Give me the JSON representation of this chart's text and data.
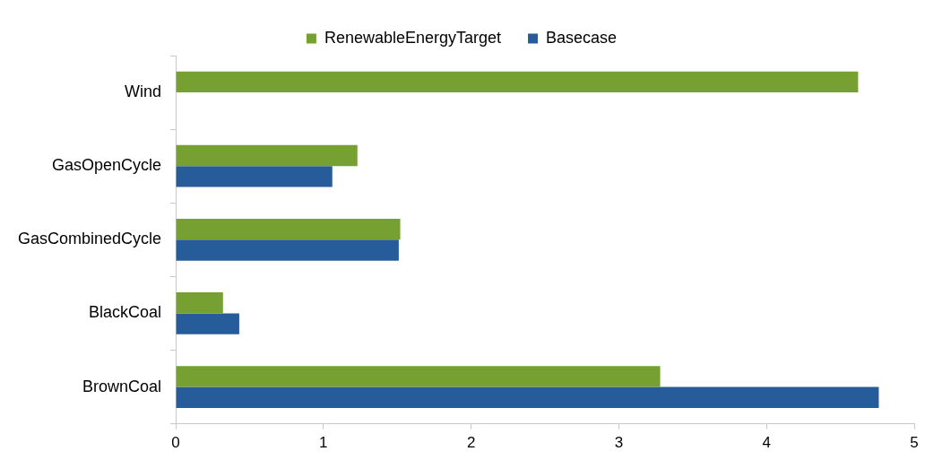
{
  "chart_data": {
    "type": "bar",
    "orientation": "horizontal",
    "categories": [
      "Wind",
      "GasOpenCycle",
      "GasCombinedCycle",
      "BlackCoal",
      "BrownCoal"
    ],
    "series": [
      {
        "name": "RenewableEnergyTarget",
        "color": "#77a033",
        "values": [
          4.62,
          1.23,
          1.52,
          0.32,
          3.28
        ]
      },
      {
        "name": "Basecase",
        "color": "#265c99",
        "values": [
          null,
          1.06,
          1.51,
          0.43,
          4.76
        ]
      }
    ],
    "xlim": [
      0,
      5
    ],
    "xticks": [
      0,
      1,
      2,
      3,
      4,
      5
    ],
    "grid": false,
    "legend": "top"
  }
}
